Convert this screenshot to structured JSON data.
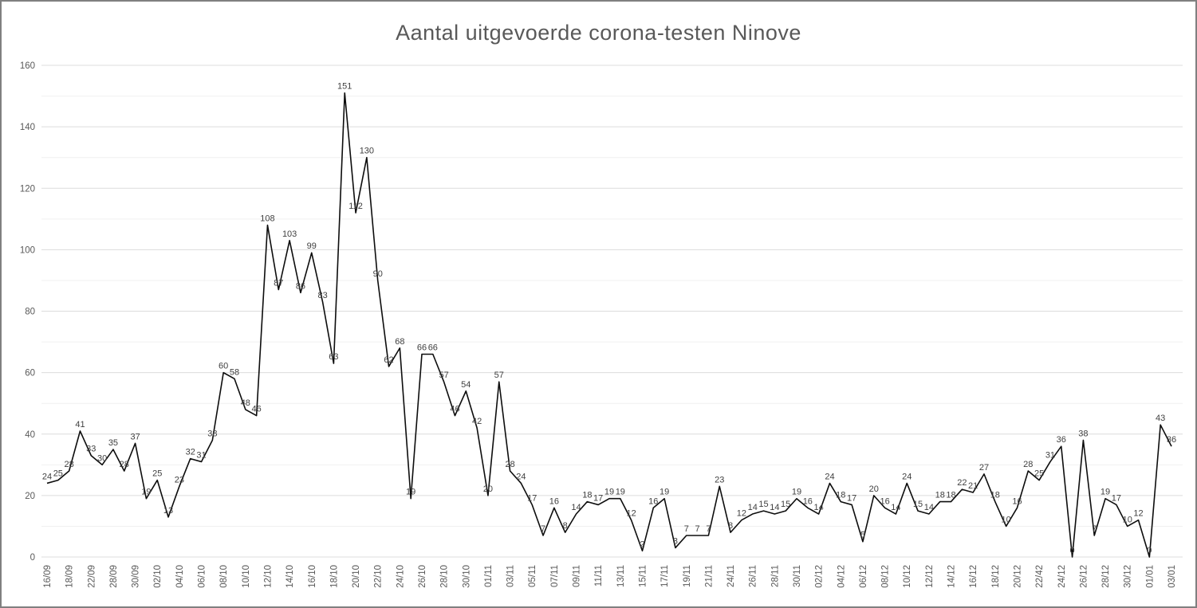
{
  "title": "Aantal uitgevoerde corona-testen Ninove",
  "chart_data": {
    "type": "line",
    "title": "Aantal uitgevoerde corona-testen Ninove",
    "values": [
      24,
      25,
      28,
      41,
      33,
      30,
      35,
      28,
      37,
      19,
      25,
      13,
      23,
      32,
      31,
      38,
      60,
      58,
      48,
      46,
      108,
      87,
      103,
      86,
      99,
      83,
      63,
      151,
      112,
      130,
      90,
      62,
      68,
      19,
      66,
      66,
      57,
      46,
      54,
      42,
      20,
      57,
      28,
      24,
      17,
      7,
      16,
      8,
      14,
      18,
      17,
      19,
      19,
      12,
      2,
      16,
      19,
      3,
      7,
      7,
      7,
      23,
      8,
      12,
      14,
      15,
      14,
      15,
      19,
      16,
      14,
      24,
      18,
      17,
      5,
      20,
      16,
      14,
      24,
      15,
      14,
      18,
      18,
      22,
      21,
      27,
      18,
      10,
      16,
      28,
      25,
      31,
      36,
      0,
      38,
      7,
      19,
      17,
      10,
      12,
      0,
      43,
      36
    ],
    "x_tick_labels": [
      "16/09",
      "18/09",
      "22/09",
      "28/09",
      "30/09",
      "02/10",
      "04/10",
      "06/10",
      "08/10",
      "10/10",
      "12/10",
      "14/10",
      "16/10",
      "18/10",
      "20/10",
      "22/10",
      "24/10",
      "26/10",
      "28/10",
      "30/10",
      "01/11",
      "03/11",
      "05/11",
      "07/11",
      "09/11",
      "11/11",
      "13/11",
      "15/11",
      "17/11",
      "19/11",
      "21/11",
      "24/11",
      "26/11",
      "28/11",
      "30/11",
      "02/12",
      "04/12",
      "06/12",
      "08/12",
      "10/12",
      "12/12",
      "14/12",
      "16/12",
      "18/12",
      "20/12",
      "22/42",
      "24/12",
      "26/12",
      "28/12",
      "30/12",
      "01/01",
      "03/01"
    ],
    "x_tick_every": 2,
    "y_tick_labels": [
      0,
      20,
      40,
      60,
      80,
      100,
      120,
      140,
      160
    ],
    "ylim": [
      0,
      160
    ],
    "y_tick_step": 20,
    "y_minor_grid_step": 10,
    "grid": true,
    "legend": "none",
    "data_labels": true,
    "line_color": "#0d0d0d",
    "label_color": "#3f3f3f",
    "axis_label_color": "#595959",
    "title_color": "#595959",
    "grid_color_major": "#dcdcdc",
    "grid_color_minor": "#f0f0f0"
  }
}
